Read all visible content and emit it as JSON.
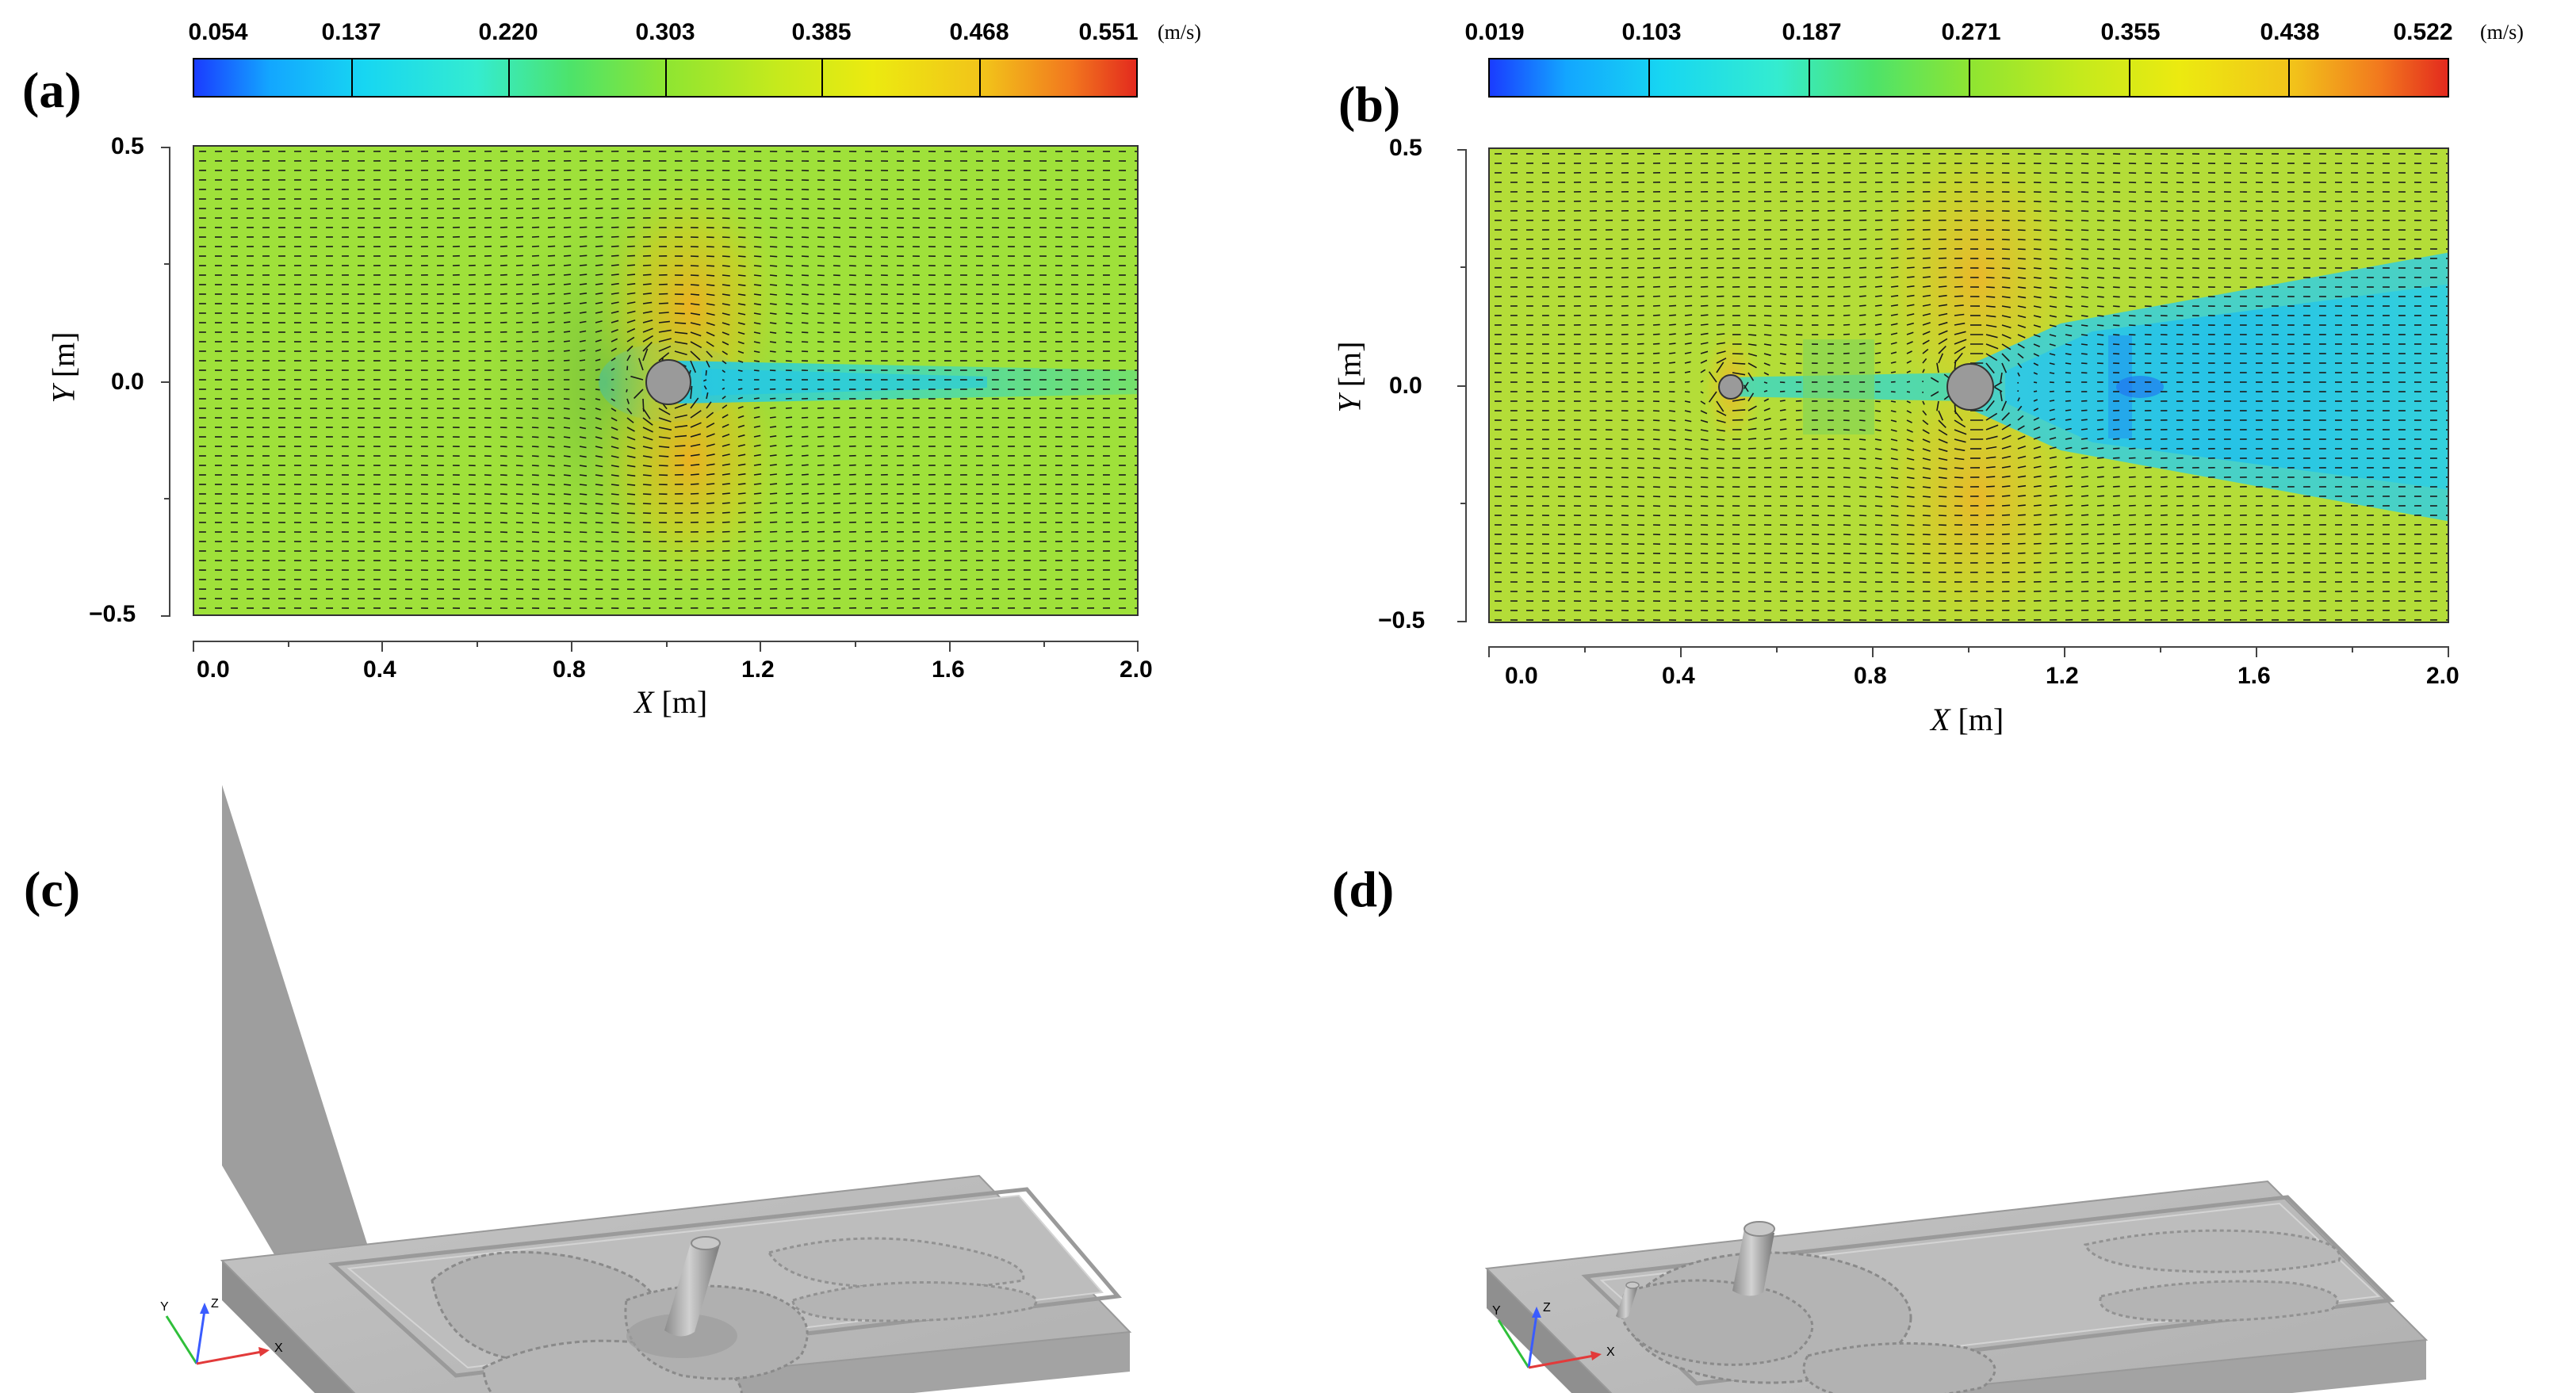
{
  "panels": {
    "a": {
      "label": "(a)",
      "colorbar": {
        "ticks": [
          "0.054",
          "0.137",
          "0.220",
          "0.303",
          "0.385",
          "0.468",
          "0.551"
        ],
        "unit": "(m/s)"
      },
      "x_ticks": [
        "0.0",
        "0.4",
        "0.8",
        "1.2",
        "1.6",
        "2.0"
      ],
      "y_ticks": [
        "0.5",
        "0.0",
        "−0.5"
      ],
      "x_title": "X",
      "x_unit": "[m]",
      "y_title": "Y",
      "y_unit": "[m]"
    },
    "b": {
      "label": "(b)",
      "colorbar": {
        "ticks": [
          "0.019",
          "0.103",
          "0.187",
          "0.271",
          "0.355",
          "0.438",
          "0.522"
        ],
        "unit": "(m/s)"
      },
      "x_ticks": [
        "0.0",
        "0.4",
        "0.8",
        "1.2",
        "1.6",
        "2.0"
      ],
      "y_ticks": [
        "0.5",
        "0.0",
        "−0.5"
      ],
      "x_title": "X",
      "x_unit": "[m]",
      "y_title": "Y",
      "y_unit": "[m]"
    },
    "c": {
      "label": "(c)",
      "axes_triad": {
        "x": "X",
        "y": "Y",
        "z": "Z"
      }
    },
    "d": {
      "label": "(d)",
      "axes_triad": {
        "x": "X",
        "y": "Y",
        "z": "Z"
      }
    }
  },
  "colors": {
    "field_background": "#9fe13a",
    "wake_low": "#26d0e8",
    "acceleration_high": "#f0b020",
    "cylinder": "#9a9a9a",
    "bed_surface": "#b8b8b8"
  }
}
